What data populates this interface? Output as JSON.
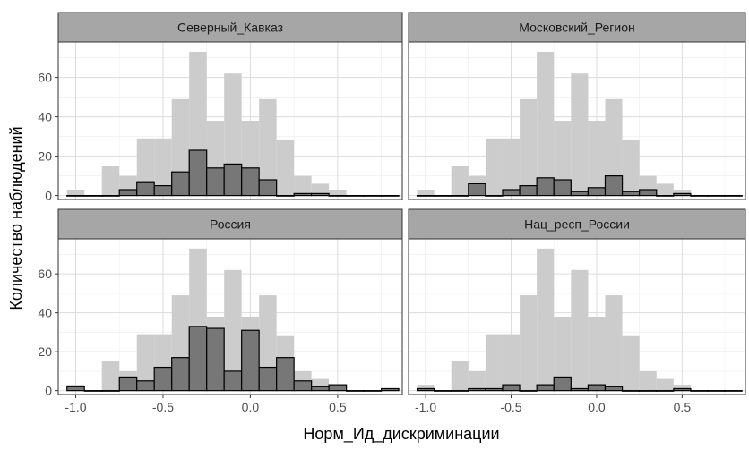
{
  "chart_data": {
    "type": "bar",
    "subtype": "faceted-histogram",
    "xlabel": "Норм_Ид_дискриминации",
    "ylabel": "Количество наблюдений",
    "xlim": [
      -1.1,
      0.87
    ],
    "ylim": [
      -2,
      78
    ],
    "x_ticks": [
      -1.0,
      -0.5,
      0.0,
      0.5
    ],
    "x_tick_labels": [
      "-1.0",
      "-0.5",
      "0.0",
      "0.5"
    ],
    "y_ticks": [
      0,
      20,
      40,
      60
    ],
    "y_tick_labels": [
      "0",
      "20",
      "40",
      "60"
    ],
    "bin_width": 0.1,
    "bin_starts": [
      -1.05,
      -0.95,
      -0.85,
      -0.75,
      -0.65,
      -0.55,
      -0.45,
      -0.35,
      -0.25,
      -0.15,
      -0.05,
      0.05,
      0.15,
      0.25,
      0.35,
      0.45,
      0.55,
      0.65,
      0.75
    ],
    "background_series": {
      "values": [
        3,
        0,
        15,
        10,
        29,
        29,
        49,
        73,
        38,
        62,
        38,
        49,
        28,
        10,
        6,
        3,
        0,
        0,
        0
      ],
      "color": "#cccccc"
    },
    "foreground_color": "#777777",
    "grid": true,
    "facets": [
      {
        "title": "Северный_Кавказ",
        "values": [
          0,
          0,
          0,
          3,
          7,
          5,
          12,
          23,
          14,
          16,
          14,
          8,
          0,
          1,
          1,
          0,
          0,
          0,
          0
        ]
      },
      {
        "title": "Московский_Регион",
        "values": [
          0,
          0,
          0,
          6,
          0,
          3,
          5,
          9,
          8,
          2,
          4,
          10,
          2,
          3,
          0,
          1,
          0,
          0,
          0
        ]
      },
      {
        "title": "Россия",
        "values": [
          2,
          0,
          0,
          7,
          5,
          12,
          17,
          33,
          32,
          10,
          31,
          12,
          17,
          5,
          2,
          3,
          0,
          0,
          1
        ]
      },
      {
        "title": "Нац_респ_России",
        "values": [
          1,
          0,
          0,
          1,
          1,
          3,
          0,
          3,
          7,
          1,
          3,
          2,
          0,
          0,
          0,
          1,
          0,
          0,
          0
        ]
      }
    ]
  }
}
